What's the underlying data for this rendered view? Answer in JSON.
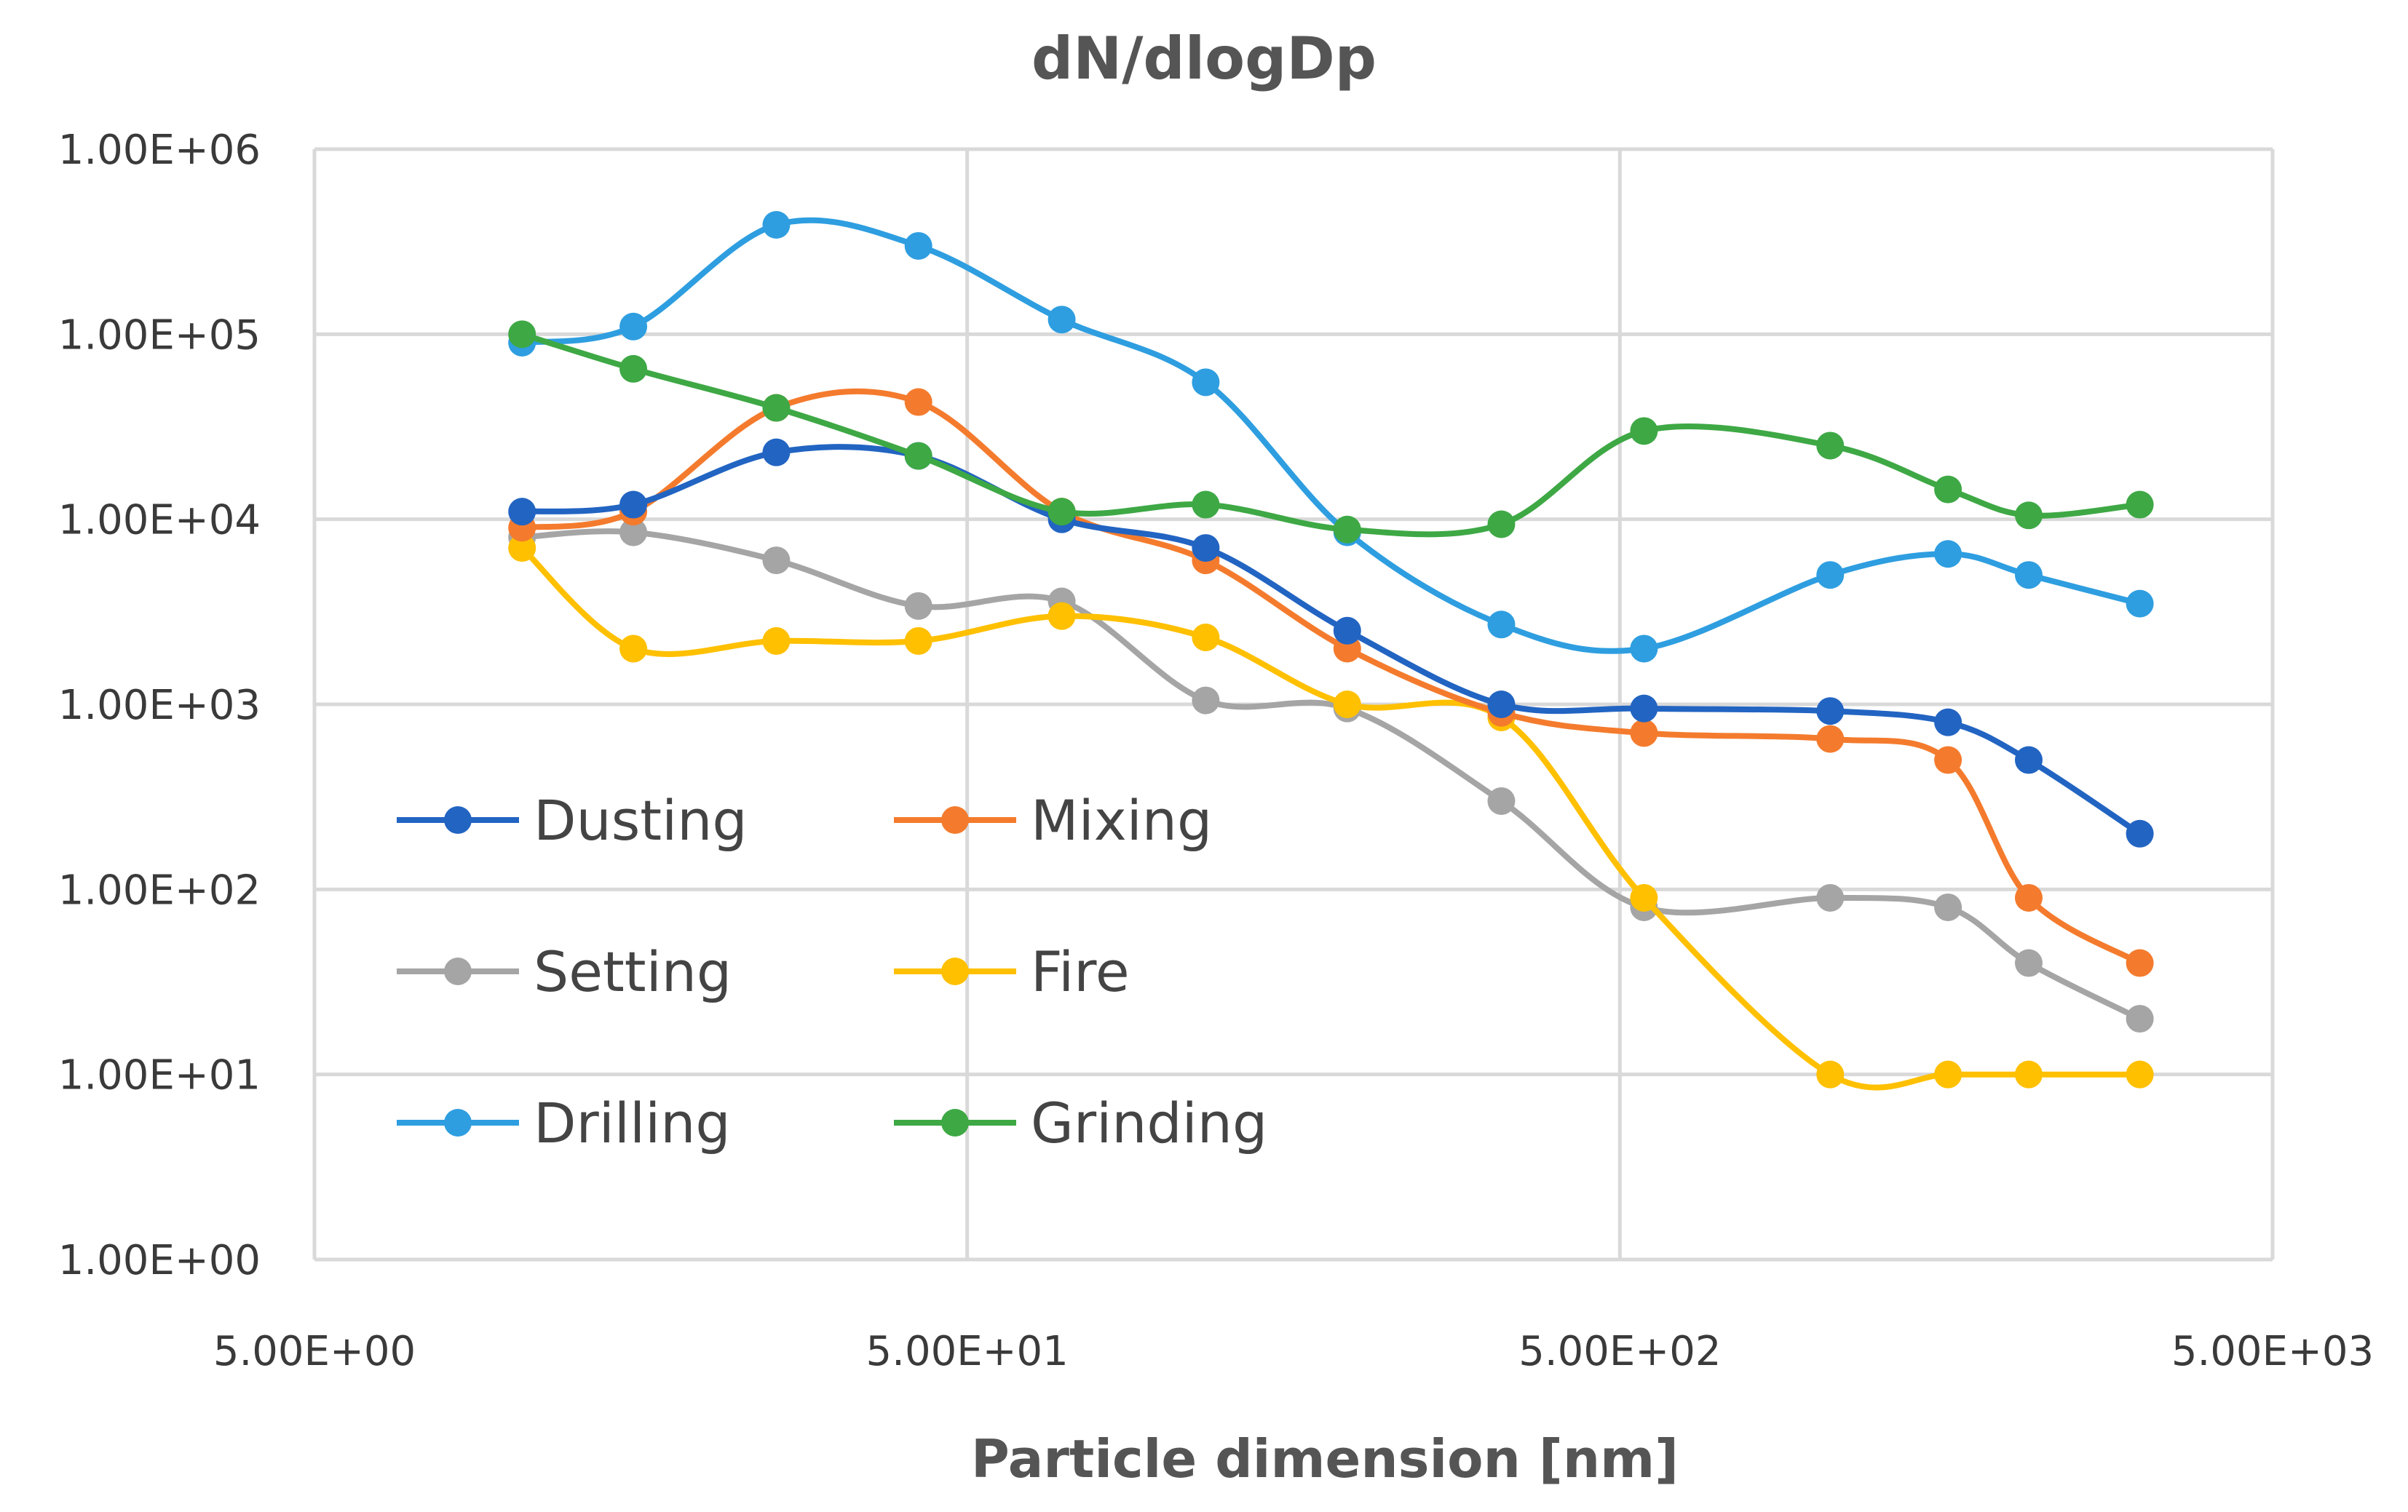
{
  "chart_data": {
    "type": "line",
    "title": "dN/dlogDp",
    "xlabel": "Particle dimension [nm]",
    "ylabel": "",
    "xscale": "log",
    "yscale": "log",
    "xlim": [
      5,
      5000
    ],
    "ylim": [
      1,
      1000000
    ],
    "xticks": [
      5,
      50,
      500,
      5000
    ],
    "xtick_labels": [
      "5.00E+00",
      "5.00E+01",
      "5.00E+02",
      "5.00E+03"
    ],
    "yticks": [
      1,
      10,
      100,
      1000,
      10000,
      100000,
      1000000
    ],
    "ytick_labels": [
      "1.00E+00",
      "1.00E+01",
      "1.00E+02",
      "1.00E+03",
      "1.00E+04",
      "1.00E+05",
      "1.00E+06"
    ],
    "grid": true,
    "legend_position": "lower-left",
    "x": [
      10.4,
      15.4,
      25.5,
      42.1,
      69.8,
      116.0,
      191.1,
      329.1,
      544.3,
      1050,
      1591,
      2115,
      3130
    ],
    "series": [
      {
        "name": "Dusting",
        "color": "#2264c2",
        "values": [
          11000,
          12000,
          23000,
          22000,
          10000,
          7000,
          2500,
          1000,
          950,
          920,
          800,
          500,
          200
        ]
      },
      {
        "name": "Mixing",
        "color": "#f47b2d",
        "values": [
          9000,
          11000,
          40000,
          43000,
          11000,
          6000,
          2000,
          900,
          700,
          650,
          500,
          90,
          40
        ]
      },
      {
        "name": "Setting",
        "color": "#a5a5a5",
        "values": [
          8000,
          8500,
          6000,
          3400,
          3600,
          1050,
          950,
          300,
          80,
          90,
          80,
          40,
          20
        ]
      },
      {
        "name": "Fire",
        "color": "#ffc000",
        "values": [
          7000,
          2000,
          2200,
          2200,
          3000,
          2300,
          1000,
          850,
          90,
          10,
          10,
          10,
          10
        ]
      },
      {
        "name": "Drilling",
        "color": "#2e9ee0",
        "values": [
          90000,
          110000,
          390000,
          300000,
          120000,
          55000,
          8500,
          2700,
          2000,
          5000,
          6500,
          5000,
          3500
        ]
      },
      {
        "name": "Grinding",
        "color": "#3ea845",
        "values": [
          100000,
          65000,
          40000,
          22000,
          11000,
          12000,
          8800,
          9400,
          30000,
          25000,
          14500,
          10500,
          12000
        ]
      }
    ]
  }
}
